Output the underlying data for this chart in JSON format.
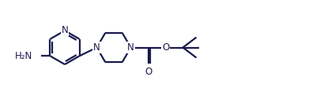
{
  "bg_color": "#ffffff",
  "line_color": "#1a1a4e",
  "line_width": 1.6,
  "font_size": 8.5,
  "fig_width": 4.05,
  "fig_height": 1.21,
  "dpi": 100,
  "xlim": [
    0.0,
    4.05
  ],
  "ylim": [
    0.0,
    1.21
  ]
}
